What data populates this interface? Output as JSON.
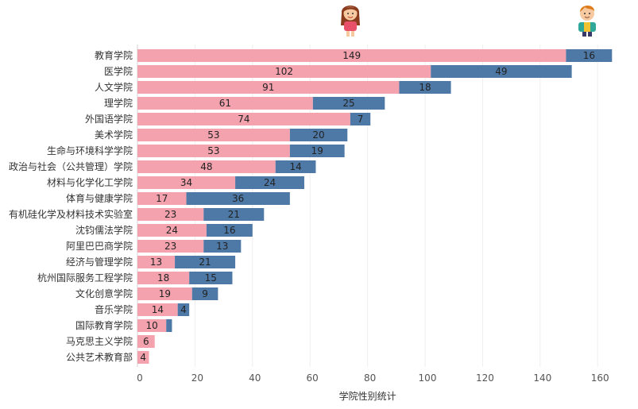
{
  "chart_data": {
    "type": "bar",
    "orientation": "horizontal",
    "stacked": true,
    "title": "",
    "xlabel": "学院性别统计",
    "ylabel": "",
    "xlim": [
      0,
      172
    ],
    "xticks": [
      0,
      20,
      40,
      60,
      80,
      100,
      120,
      140,
      160
    ],
    "grid": true,
    "legend": "icons above bars: female (pink) and male (blue)",
    "categories": [
      "教育学院",
      "医学院",
      "人文学院",
      "理学院",
      "外国语学院",
      "美术学院",
      "生命与环境科学学院",
      "政治与社会（公共管理）学院",
      "材料与化学化工学院",
      "体育与健康学院",
      "有机硅化学及材料技术实验室",
      "沈钧儒法学院",
      "阿里巴巴商学院",
      "经济与管理学院",
      "杭州国际服务工程学院",
      "文化创意学院",
      "音乐学院",
      "国际教育学院",
      "马克思主义学院",
      "公共艺术教育部"
    ],
    "series": [
      {
        "name": "female",
        "color": "#f4a3ae",
        "values": [
          149,
          102,
          91,
          61,
          74,
          53,
          53,
          48,
          34,
          17,
          23,
          24,
          23,
          13,
          18,
          19,
          14,
          10,
          6,
          4
        ],
        "labels": [
          "149",
          "102",
          "91",
          "61",
          "74",
          "53",
          "53",
          "48",
          "34",
          "17",
          "23",
          "24",
          "23",
          "13",
          "18",
          "19",
          "14",
          "10",
          "6",
          "4"
        ]
      },
      {
        "name": "male",
        "color": "#4e79a7",
        "values": [
          16,
          49,
          18,
          25,
          7,
          20,
          19,
          14,
          24,
          36,
          21,
          16,
          13,
          21,
          15,
          9,
          4,
          2,
          0,
          0
        ],
        "labels": [
          "16",
          "49",
          "18",
          "25",
          "7",
          "20",
          "19",
          "14",
          "24",
          "36",
          "21",
          "16",
          "13",
          "21",
          "15",
          "9",
          "4",
          "",
          "",
          ""
        ]
      }
    ]
  }
}
